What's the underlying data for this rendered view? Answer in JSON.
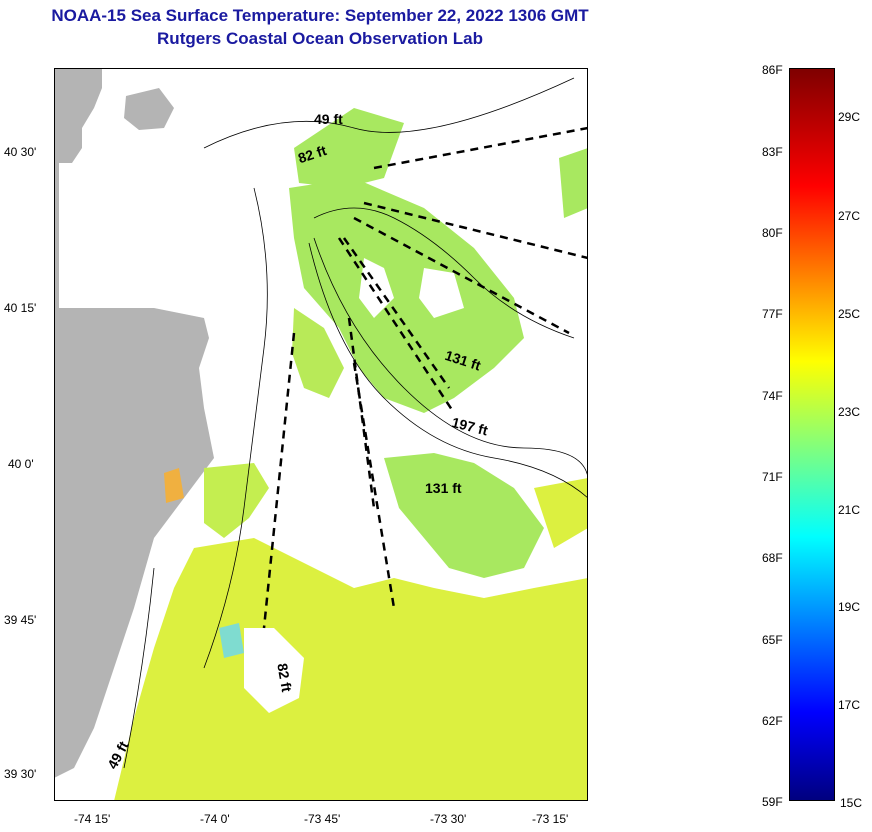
{
  "title_line1": "NOAA-15 Sea Surface Temperature:  September 22, 2022 1306 GMT",
  "title_line2": "Rutgers Coastal Ocean Observation Lab",
  "y_ticks": [
    "40 30'",
    "40 15'",
    "40 0'",
    "39 45'",
    "39 30'"
  ],
  "x_ticks": [
    "-74 15'",
    "-74 0'",
    "-73 45'",
    "-73 30'",
    "-73 15'"
  ],
  "depth_labels": [
    "49 ft",
    "82 ft",
    "131 ft",
    "197 ft",
    "131 ft",
    "82 ft",
    "49 ft"
  ],
  "colorbar": {
    "fahrenheit": [
      "86F",
      "83F",
      "80F",
      "77F",
      "74F",
      "71F",
      "68F",
      "65F",
      "62F",
      "59F"
    ],
    "celsius": [
      "29C",
      "27C",
      "25C",
      "23C",
      "21C",
      "19C",
      "17C",
      "15C"
    ]
  },
  "colors": {
    "land": "#b4b4b4",
    "sst_mid": "#a8e860",
    "sst_warm": "#dcf040",
    "title": "#1a1aa0"
  }
}
